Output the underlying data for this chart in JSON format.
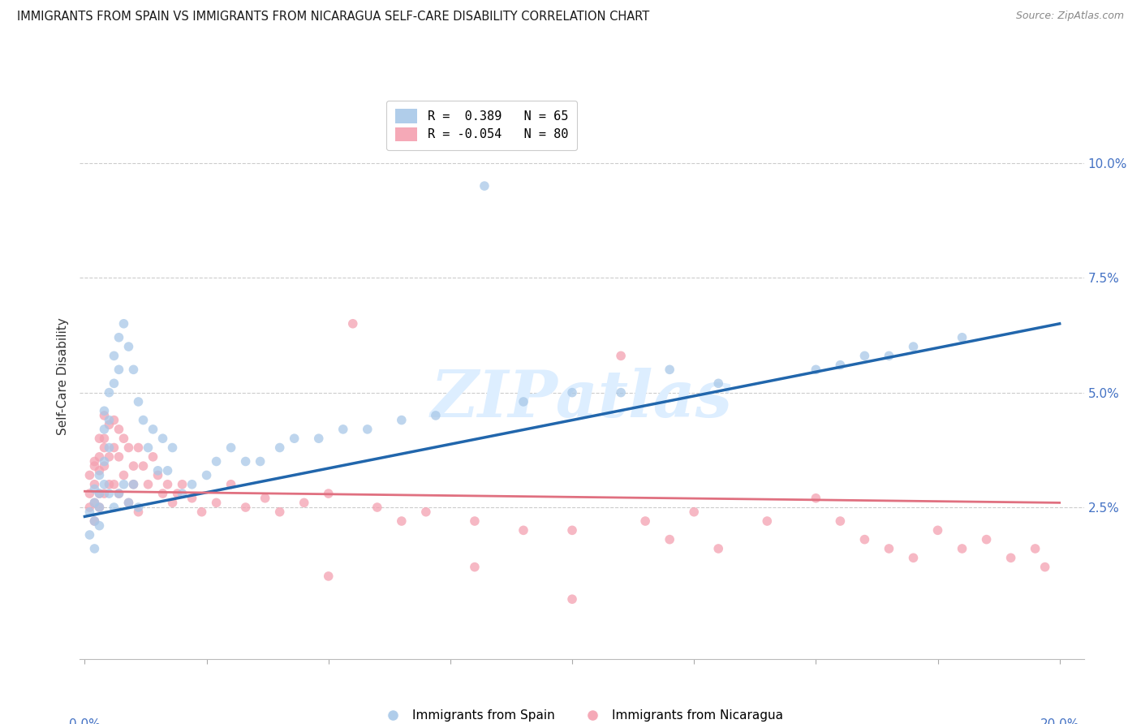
{
  "title": "IMMIGRANTS FROM SPAIN VS IMMIGRANTS FROM NICARAGUA SELF-CARE DISABILITY CORRELATION CHART",
  "source": "Source: ZipAtlas.com",
  "ylabel": "Self-Care Disability",
  "ytick_labels": [
    "2.5%",
    "5.0%",
    "7.5%",
    "10.0%"
  ],
  "ytick_values": [
    0.025,
    0.05,
    0.075,
    0.1
  ],
  "xlim": [
    -0.001,
    0.205
  ],
  "ylim": [
    -0.008,
    0.115
  ],
  "legend_blue_label": "R =  0.389   N = 65",
  "legend_pink_label": "R = -0.054   N = 80",
  "blue_scatter_color": "#a8c8e8",
  "pink_scatter_color": "#f4a0b0",
  "blue_line_color": "#2166ac",
  "pink_line_color": "#e07080",
  "watermark_text": "ZIPatlas",
  "watermark_color": "#ddeeff",
  "legend_bottom_blue": "Immigrants from Spain",
  "legend_bottom_pink": "Immigrants from Nicaragua",
  "blue_line_x": [
    0.0,
    0.2
  ],
  "blue_line_y": [
    0.023,
    0.065
  ],
  "pink_line_x": [
    0.0,
    0.2
  ],
  "pink_line_y": [
    0.0285,
    0.026
  ],
  "spain_x": [
    0.001,
    0.001,
    0.002,
    0.002,
    0.002,
    0.002,
    0.003,
    0.003,
    0.003,
    0.003,
    0.004,
    0.004,
    0.004,
    0.004,
    0.005,
    0.005,
    0.005,
    0.005,
    0.006,
    0.006,
    0.006,
    0.007,
    0.007,
    0.007,
    0.008,
    0.008,
    0.009,
    0.009,
    0.01,
    0.01,
    0.011,
    0.011,
    0.012,
    0.013,
    0.014,
    0.015,
    0.016,
    0.017,
    0.018,
    0.02,
    0.022,
    0.025,
    0.027,
    0.03,
    0.033,
    0.036,
    0.04,
    0.043,
    0.048,
    0.053,
    0.058,
    0.065,
    0.072,
    0.082,
    0.09,
    0.1,
    0.11,
    0.12,
    0.13,
    0.15,
    0.155,
    0.16,
    0.165,
    0.17,
    0.18
  ],
  "spain_y": [
    0.024,
    0.019,
    0.026,
    0.022,
    0.016,
    0.029,
    0.028,
    0.032,
    0.021,
    0.025,
    0.046,
    0.042,
    0.035,
    0.03,
    0.05,
    0.044,
    0.038,
    0.028,
    0.058,
    0.052,
    0.025,
    0.062,
    0.055,
    0.028,
    0.065,
    0.03,
    0.06,
    0.026,
    0.055,
    0.03,
    0.048,
    0.025,
    0.044,
    0.038,
    0.042,
    0.033,
    0.04,
    0.033,
    0.038,
    0.028,
    0.03,
    0.032,
    0.035,
    0.038,
    0.035,
    0.035,
    0.038,
    0.04,
    0.04,
    0.042,
    0.042,
    0.044,
    0.045,
    0.095,
    0.048,
    0.05,
    0.05,
    0.055,
    0.052,
    0.055,
    0.056,
    0.058,
    0.058,
    0.06,
    0.062
  ],
  "nicaragua_x": [
    0.001,
    0.001,
    0.001,
    0.002,
    0.002,
    0.002,
    0.002,
    0.003,
    0.003,
    0.003,
    0.003,
    0.004,
    0.004,
    0.004,
    0.004,
    0.005,
    0.005,
    0.005,
    0.006,
    0.006,
    0.006,
    0.007,
    0.007,
    0.007,
    0.008,
    0.008,
    0.009,
    0.009,
    0.01,
    0.01,
    0.011,
    0.011,
    0.012,
    0.013,
    0.014,
    0.015,
    0.016,
    0.017,
    0.018,
    0.019,
    0.02,
    0.022,
    0.024,
    0.027,
    0.03,
    0.033,
    0.037,
    0.04,
    0.045,
    0.05,
    0.055,
    0.06,
    0.065,
    0.07,
    0.08,
    0.09,
    0.1,
    0.11,
    0.115,
    0.12,
    0.125,
    0.13,
    0.14,
    0.15,
    0.155,
    0.16,
    0.165,
    0.17,
    0.175,
    0.18,
    0.185,
    0.19,
    0.195,
    0.197,
    0.05,
    0.08,
    0.1,
    0.002,
    0.003,
    0.004
  ],
  "nicaragua_y": [
    0.028,
    0.032,
    0.025,
    0.03,
    0.026,
    0.034,
    0.022,
    0.028,
    0.033,
    0.025,
    0.036,
    0.04,
    0.034,
    0.028,
    0.038,
    0.043,
    0.036,
    0.03,
    0.044,
    0.038,
    0.03,
    0.042,
    0.036,
    0.028,
    0.04,
    0.032,
    0.038,
    0.026,
    0.034,
    0.03,
    0.038,
    0.024,
    0.034,
    0.03,
    0.036,
    0.032,
    0.028,
    0.03,
    0.026,
    0.028,
    0.03,
    0.027,
    0.024,
    0.026,
    0.03,
    0.025,
    0.027,
    0.024,
    0.026,
    0.028,
    0.065,
    0.025,
    0.022,
    0.024,
    0.022,
    0.02,
    0.02,
    0.058,
    0.022,
    0.018,
    0.024,
    0.016,
    0.022,
    0.027,
    0.022,
    0.018,
    0.016,
    0.014,
    0.02,
    0.016,
    0.018,
    0.014,
    0.016,
    0.012,
    0.01,
    0.012,
    0.005,
    0.035,
    0.04,
    0.045
  ]
}
